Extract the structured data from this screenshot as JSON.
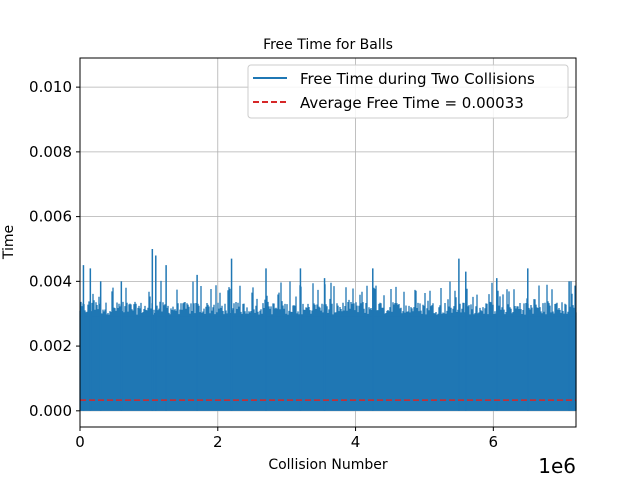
{
  "chart_data": {
    "type": "line",
    "title": "Free Time for Balls",
    "xlabel": "Collision Number",
    "ylabel": "Time",
    "x_offset_text": "1e6",
    "xlim": [
      0,
      7.2
    ],
    "ylim": [
      -0.0005,
      0.0109
    ],
    "x_ticks": [
      0,
      2,
      4,
      6
    ],
    "x_tick_labels": [
      "0",
      "2",
      "4",
      "6"
    ],
    "y_ticks": [
      0.0,
      0.002,
      0.004,
      0.006,
      0.008,
      0.01
    ],
    "y_tick_labels": [
      "0.000",
      "0.002",
      "0.004",
      "0.006",
      "0.008",
      "0.010"
    ],
    "grid": true,
    "legend_position": "top-right",
    "series": [
      {
        "name": "Free Time during Two Collisions",
        "color": "#1f77b4",
        "style": "solid",
        "x_range": [
          0,
          7.2
        ],
        "baseline": 0.0,
        "typical_max": 0.0033,
        "peaks": [
          {
            "x": 0.05,
            "y": 0.0045
          },
          {
            "x": 0.15,
            "y": 0.0044
          },
          {
            "x": 0.3,
            "y": 0.004
          },
          {
            "x": 0.6,
            "y": 0.004
          },
          {
            "x": 1.05,
            "y": 0.005
          },
          {
            "x": 1.1,
            "y": 0.0048
          },
          {
            "x": 1.25,
            "y": 0.0045
          },
          {
            "x": 1.7,
            "y": 0.0042
          },
          {
            "x": 2.2,
            "y": 0.0047
          },
          {
            "x": 2.7,
            "y": 0.0044
          },
          {
            "x": 3.2,
            "y": 0.0044
          },
          {
            "x": 3.55,
            "y": 0.0041
          },
          {
            "x": 4.25,
            "y": 0.0044
          },
          {
            "x": 5.5,
            "y": 0.0047
          },
          {
            "x": 5.6,
            "y": 0.0043
          },
          {
            "x": 6.05,
            "y": 0.0041
          },
          {
            "x": 6.5,
            "y": 0.0044
          },
          {
            "x": 7.1,
            "y": 0.004
          }
        ]
      },
      {
        "name": "Average Free Time = 0.00033",
        "color": "#d62728",
        "style": "dashed",
        "y": 0.00033
      }
    ]
  }
}
